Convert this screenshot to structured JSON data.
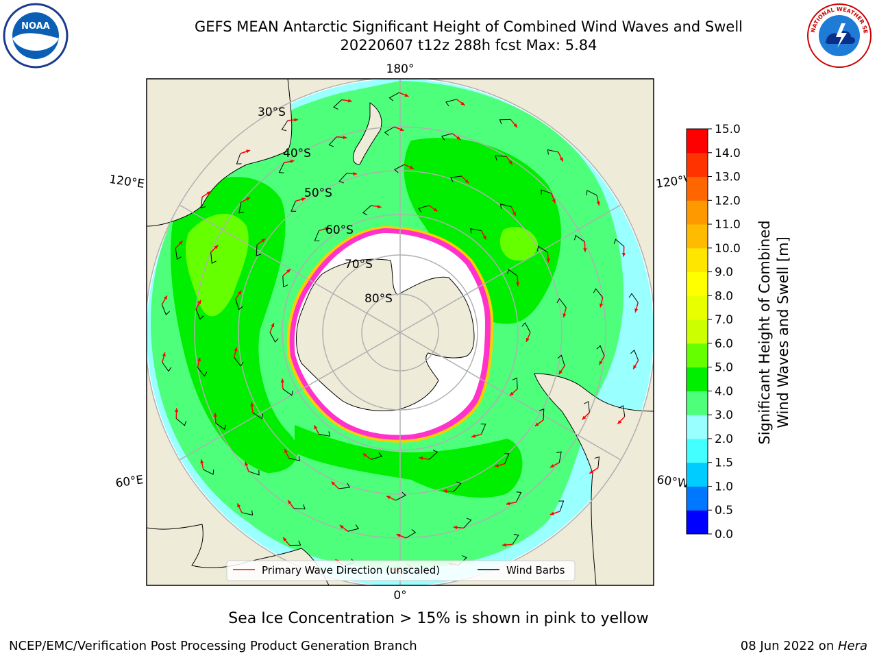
{
  "title_line1": "GEFS MEAN Antarctic Significant Height of Combined Wind Waves and Swell",
  "title_line2": "20220607 t12z 288h fcst   Max: 5.84",
  "logos": {
    "left": "NOAA",
    "right": "NATIONAL WEATHER SERVICE"
  },
  "map": {
    "projection": "south-polar-stereographic",
    "longitude_labels": {
      "top": "180°",
      "bottom": "0°",
      "left_upper": "120°E",
      "left_lower": "60°E",
      "right_upper": "120°W",
      "right_lower": "60°W"
    },
    "latitude_labels": [
      "30°S",
      "40°S",
      "50°S",
      "60°S",
      "70°S",
      "80°S"
    ],
    "legend": {
      "wave_direction": "Primary Wave Direction (unscaled)",
      "wind_barbs": "Wind Barbs"
    },
    "colors": {
      "land": "#efebd9",
      "sea_ice": "#ffffff",
      "ice_edge_pink": "#ff33cc",
      "ice_edge_yellow": "#ffcc00",
      "arrow": "#ff0000",
      "barb": "#000000",
      "gridline": "#b0b0b0"
    }
  },
  "colorbar": {
    "label_line1": "Significant Height of Combined",
    "label_line2": "Wind Waves and Swell [m]",
    "ticks": [
      "0.0",
      "0.5",
      "1.0",
      "1.5",
      "2.0",
      "3.0",
      "4.0",
      "5.0",
      "6.0",
      "7.0",
      "8.0",
      "9.0",
      "10.0",
      "11.0",
      "12.0",
      "13.0",
      "14.0",
      "15.0"
    ],
    "colors": [
      "#0000ff",
      "#0077ff",
      "#00ccff",
      "#44ffff",
      "#99ffff",
      "#4dff7a",
      "#00ee00",
      "#66ff00",
      "#ccff00",
      "#e8ff00",
      "#ffff00",
      "#ffe600",
      "#ffbb00",
      "#ff9900",
      "#ff6600",
      "#ff3300",
      "#ff0000"
    ]
  },
  "footer": {
    "note": "Sea Ice Concentration > 15% is shown in pink to yellow",
    "left": "NCEP/EMC/Verification Post Processing Product Generation Branch",
    "right_date": "08 Jun 2022 on ",
    "right_machine": "Hera"
  }
}
